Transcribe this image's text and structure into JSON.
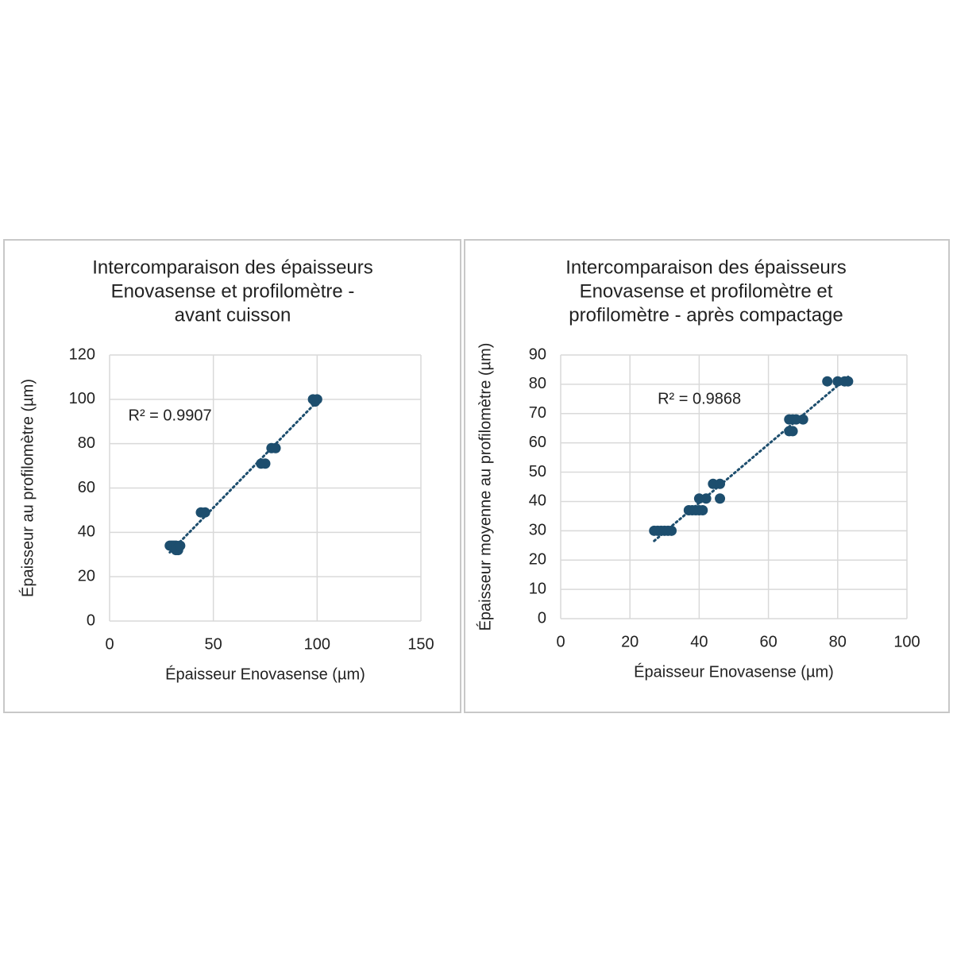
{
  "chart_data": [
    {
      "type": "scatter",
      "title": [
        "Intercomparaison des épaisseurs",
        "Enovasense et profilomètre -",
        "avant cuisson"
      ],
      "xlabel": "Épaisseur Enovasense (µm)",
      "ylabel": "Épaisseur au profilomètre (µm)",
      "annotation": "R² = 0.9907",
      "trendline": true,
      "grid": true,
      "color": "#1d4e6e",
      "x": [
        29,
        30,
        31,
        32,
        33,
        33,
        32,
        34,
        44,
        46,
        73,
        75,
        78,
        80,
        98,
        99,
        100
      ],
      "y": [
        34,
        34,
        34,
        34,
        33,
        32,
        32,
        34,
        49,
        49,
        71,
        71,
        78,
        78,
        100,
        99,
        100
      ],
      "xlim": [
        0,
        150
      ],
      "xticks": [
        0,
        50,
        100,
        150
      ],
      "ylim": [
        0,
        120
      ],
      "yticks": [
        0,
        20,
        40,
        60,
        80,
        100,
        120
      ]
    },
    {
      "type": "scatter",
      "title": [
        "Intercomparaison des épaisseurs",
        "Enovasense et profilomètre et",
        "profilomètre - après compactage"
      ],
      "xlabel": "Épaisseur Enovasense (µm)",
      "ylabel": "Épaisseur moyenne au profilomètre (µm)",
      "annotation": "R² = 0.9868",
      "trendline": true,
      "grid": true,
      "color": "#1d4e6e",
      "x": [
        27,
        28,
        29,
        30,
        31,
        32,
        37,
        38,
        39,
        40,
        41,
        40,
        42,
        44,
        46,
        46,
        66,
        67,
        66,
        67,
        68,
        70,
        77,
        80,
        82,
        83
      ],
      "y": [
        30,
        30,
        30,
        30,
        30,
        30,
        37,
        37,
        37,
        37,
        37,
        41,
        41,
        46,
        46,
        41,
        64,
        64,
        68,
        68,
        68,
        68,
        81,
        81,
        81,
        81
      ],
      "xlim": [
        0,
        100
      ],
      "xticks": [
        0,
        20,
        40,
        60,
        80,
        100
      ],
      "ylim": [
        0,
        90
      ],
      "yticks": [
        0,
        10,
        20,
        30,
        40,
        50,
        60,
        70,
        80,
        90
      ]
    }
  ]
}
